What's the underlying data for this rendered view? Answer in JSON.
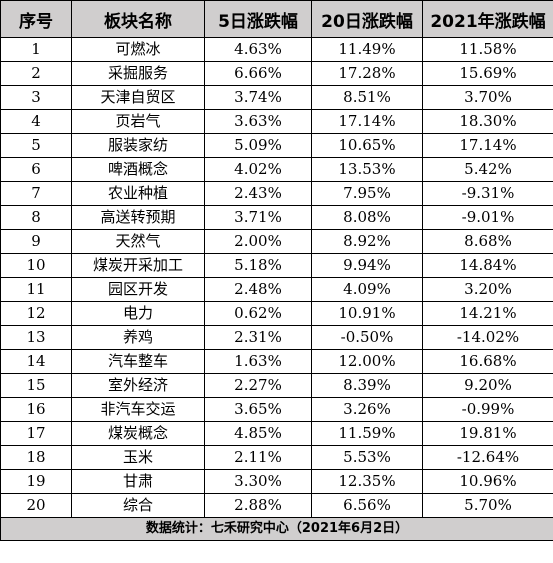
{
  "table": {
    "headers": [
      "序号",
      "板块名称",
      "5日涨跌幅",
      "20日涨跌幅",
      "2021年涨跌幅"
    ],
    "rows": [
      [
        "1",
        "可燃冰",
        "4.63%",
        "11.49%",
        "11.58%"
      ],
      [
        "2",
        "采掘服务",
        "6.66%",
        "17.28%",
        "15.69%"
      ],
      [
        "3",
        "天津自贸区",
        "3.74%",
        "8.51%",
        "3.70%"
      ],
      [
        "4",
        "页岩气",
        "3.63%",
        "17.14%",
        "18.30%"
      ],
      [
        "5",
        "服装家纺",
        "5.09%",
        "10.65%",
        "17.14%"
      ],
      [
        "6",
        "啤酒概念",
        "4.02%",
        "13.53%",
        "5.42%"
      ],
      [
        "7",
        "农业种植",
        "2.43%",
        "7.95%",
        "-9.31%"
      ],
      [
        "8",
        "高送转预期",
        "3.71%",
        "8.08%",
        "-9.01%"
      ],
      [
        "9",
        "天然气",
        "2.00%",
        "8.92%",
        "8.68%"
      ],
      [
        "10",
        "煤炭开采加工",
        "5.18%",
        "9.94%",
        "14.84%"
      ],
      [
        "11",
        "园区开发",
        "2.48%",
        "4.09%",
        "3.20%"
      ],
      [
        "12",
        "电力",
        "0.62%",
        "10.91%",
        "14.21%"
      ],
      [
        "13",
        "养鸡",
        "2.31%",
        "-0.50%",
        "-14.02%"
      ],
      [
        "14",
        "汽车整车",
        "1.63%",
        "12.00%",
        "16.68%"
      ],
      [
        "15",
        "室外经济",
        "2.27%",
        "8.39%",
        "9.20%"
      ],
      [
        "16",
        "非汽车交运",
        "3.65%",
        "3.26%",
        "-0.99%"
      ],
      [
        "17",
        "煤炭概念",
        "4.85%",
        "11.59%",
        "19.81%"
      ],
      [
        "18",
        "玉米",
        "2.11%",
        "5.53%",
        "-12.64%"
      ],
      [
        "19",
        "甘肃",
        "3.30%",
        "12.35%",
        "10.96%"
      ],
      [
        "20",
        "综合",
        "2.88%",
        "6.56%",
        "5.70%"
      ]
    ],
    "footer": "数据统计：七禾研究中心（2021年6月2日）"
  },
  "colors": {
    "header_bg": "#d0cece",
    "footer_bg": "#d0cece",
    "border": "#000000"
  }
}
